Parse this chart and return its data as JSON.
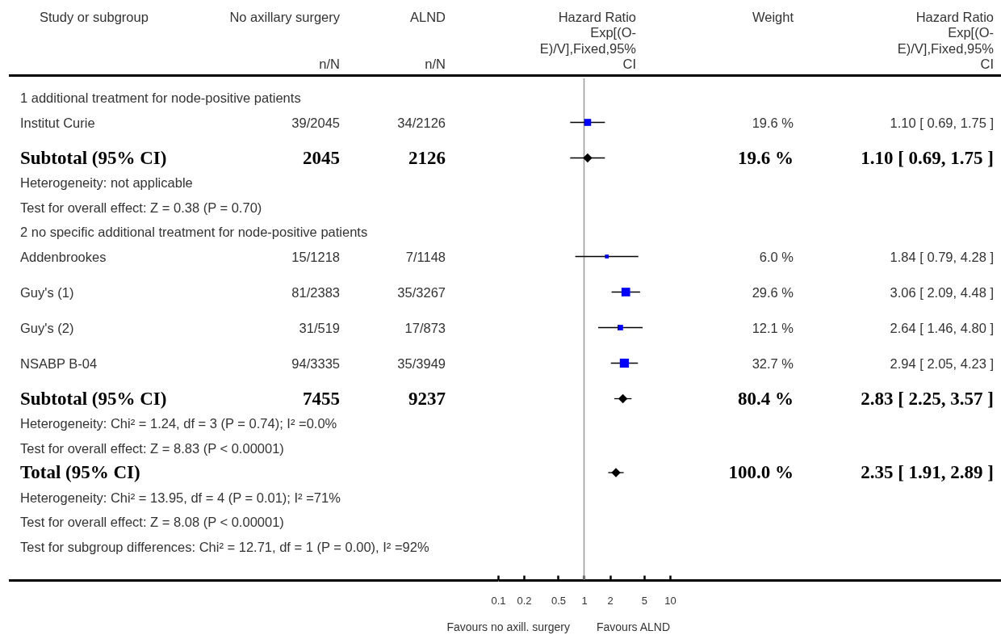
{
  "chart_data": {
    "type": "scatter",
    "orientation": "horizontal",
    "log": "x",
    "xlim": [
      0.1,
      10
    ],
    "xticks": [
      0.1,
      0.2,
      0.5,
      1,
      2,
      5,
      10
    ],
    "categories": [
      "1 additional treatment for node-positive patients",
      "Institut Curie",
      "Subtotal (95% CI)",
      "Heterogeneity: not applicable",
      "Test for overall effect: Z = 0.38 (P = 0.70)",
      "2 no specific additional treatment for node-positive patients",
      "Addenbrookes",
      "Guy's (1)",
      "Guy's (2)",
      "NSABP B-04",
      "Subtotal (95% CI)",
      "Heterogeneity: Chi² = 1.24, df = 3 (P = 0.74); I² =0.0%",
      "Test for overall effect: Z = 8.83 (P < 0.00001)",
      "Total (95% CI)",
      "Heterogeneity: Chi² = 13.95, df = 4 (P = 0.01); I² =71%",
      "Test for overall effect: Z = 8.08 (P < 0.00001)",
      "Test for subgroup differences: Chi² = 12.71, df = 1 (P = 0.00), I² =92%"
    ],
    "series": [
      {
        "type": "bubble",
        "marker": "square",
        "color": "#0000ff",
        "values": [
          null,
          1.1,
          null,
          null,
          null,
          null,
          1.84,
          3.06,
          2.64,
          2.94,
          null,
          null,
          null,
          null,
          null,
          null,
          null
        ],
        "errors": [
          null,
          [
            0.69,
            1.75
          ],
          null,
          null,
          null,
          null,
          [
            0.79,
            4.28
          ],
          [
            2.09,
            4.48
          ],
          [
            1.46,
            4.8
          ],
          [
            2.05,
            4.23
          ],
          null,
          null,
          null,
          null,
          null,
          null,
          null
        ],
        "sizes": [
          null,
          0.6,
          null,
          null,
          null,
          null,
          0.18,
          0.91,
          0.37,
          1,
          null,
          null,
          null,
          null,
          null,
          null,
          null
        ],
        "value_labels": [
          null,
          "1.10 [ 0.69, 1.75 ]",
          null,
          null,
          null,
          null,
          "1.84 [ 0.79, 4.28 ]",
          "3.06 [ 2.09, 4.48 ]",
          "2.64 [ 1.46, 4.80 ]",
          "2.94 [ 2.05, 4.23 ]",
          null,
          null,
          null,
          null,
          null,
          null,
          null
        ]
      },
      {
        "marker": "diamond",
        "color": "#000000",
        "values": [
          null,
          null,
          1.1,
          null,
          null,
          null,
          null,
          null,
          null,
          null,
          2.83,
          null,
          null,
          2.35,
          null,
          null,
          null
        ],
        "errors": [
          null,
          null,
          [
            0.69,
            1.75
          ],
          null,
          null,
          null,
          null,
          null,
          null,
          null,
          [
            2.25,
            3.57
          ],
          null,
          null,
          [
            1.91,
            2.89
          ],
          null,
          null,
          null
        ]
      }
    ],
    "ref_lines": [
      {
        "axis": "x",
        "value": 1,
        "color": "#999999"
      }
    ],
    "annotations": [
      "Study or subgroup",
      "No axillary surgery",
      "n/N",
      "ALND",
      "n/N",
      "Hazard Ratio\nExp[(O-\nE)/V],Fixed,95%\nCI",
      "Weight",
      "Hazard Ratio\nExp[(O-\nE)/V],Fixed,95%\nCI",
      "39/2045",
      "34/2126",
      "19.6 %",
      "2045",
      "2126",
      "19.6 %",
      "1.10 [ 0.69, 1.75 ]",
      "15/1218",
      "7/1148",
      "6.0 %",
      "81/2383",
      "35/3267",
      "29.6 %",
      "31/519",
      "17/873",
      "12.1 %",
      "94/3335",
      "35/3949",
      "32.7 %",
      "7455",
      "9237",
      "80.4 %",
      "2.83 [ 2.25, 3.57 ]",
      "100.0 %",
      "2.35 [ 1.91, 2.89 ]",
      "Favours no axill. surgery",
      "Favours ALND"
    ]
  }
}
